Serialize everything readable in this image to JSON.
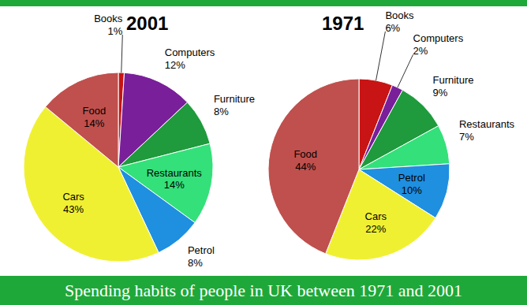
{
  "title": "Spending habits of people in UK between 1971 and 2001",
  "chart_data": [
    {
      "type": "pie",
      "title": "2001",
      "categories": [
        "Books",
        "Computers",
        "Furniture",
        "Restaurants",
        "Petrol",
        "Cars",
        "Food"
      ],
      "values": [
        1,
        12,
        8,
        14,
        8,
        43,
        14
      ],
      "value_labels": [
        "1%",
        "12%",
        "8%",
        "14%",
        "8%",
        "43%",
        "14%"
      ],
      "colors": [
        "#c81414",
        "#7a1f9a",
        "#1f9a3c",
        "#33e07a",
        "#1f8fe0",
        "#f0f032",
        "#c0504d"
      ],
      "data_labels": true
    },
    {
      "type": "pie",
      "title": "1971",
      "categories": [
        "Books",
        "Computers",
        "Furniture",
        "Restaurants",
        "Petrol",
        "Cars",
        "Food"
      ],
      "values": [
        6,
        2,
        9,
        7,
        10,
        22,
        44
      ],
      "value_labels": [
        "6%",
        "2%",
        "9%",
        "7%",
        "10%",
        "22%",
        "44%"
      ],
      "colors": [
        "#c81414",
        "#7a1f9a",
        "#1f9a3c",
        "#33e07a",
        "#1f8fe0",
        "#f0f032",
        "#c0504d"
      ],
      "data_labels": true
    }
  ]
}
